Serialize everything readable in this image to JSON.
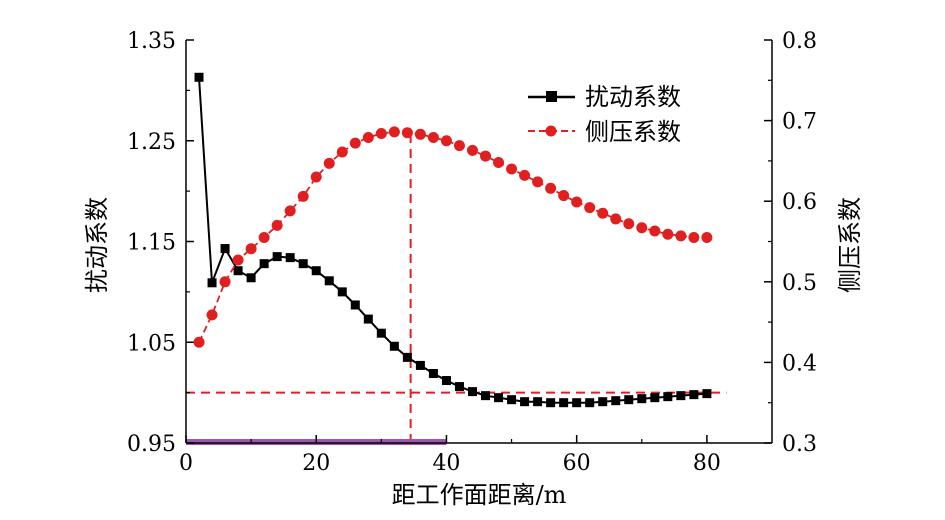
{
  "chart_data": {
    "type": "line",
    "xlabel": "距工作面距离/m",
    "ylabel": "扰动系数",
    "y2label": "侧压系数",
    "xlim": [
      0,
      90
    ],
    "ylim": [
      0.95,
      1.35
    ],
    "y2lim": [
      0.3,
      0.8
    ],
    "xticks": [
      0,
      20,
      40,
      60,
      80
    ],
    "yticks": [
      0.95,
      1.05,
      1.15,
      1.25,
      1.35
    ],
    "y2ticks": [
      0.3,
      0.4,
      0.5,
      0.6,
      0.7,
      0.8
    ],
    "xtick_labels": [
      "0",
      "20",
      "40",
      "60",
      "80"
    ],
    "ytick_labels": [
      "0.95",
      "1.05",
      "1.15",
      "1.25",
      "1.35"
    ],
    "y2tick_labels": [
      "0.3",
      "0.4",
      "0.5",
      "0.6",
      "0.7",
      "0.8"
    ],
    "legend_position": "top-right",
    "series": [
      {
        "name": "扰动系数",
        "axis": "left",
        "color": "#000000",
        "marker": "square",
        "x": [
          2,
          4,
          6,
          8,
          10,
          12,
          14,
          16,
          18,
          20,
          22,
          24,
          26,
          28,
          30,
          32,
          34,
          36,
          38,
          40,
          42,
          44,
          46,
          48,
          50,
          52,
          54,
          56,
          58,
          60,
          62,
          64,
          66,
          68,
          70,
          72,
          74,
          76,
          78,
          80
        ],
        "values": [
          1.313,
          1.109,
          1.143,
          1.121,
          1.114,
          1.128,
          1.135,
          1.134,
          1.128,
          1.121,
          1.111,
          1.1,
          1.087,
          1.073,
          1.059,
          1.046,
          1.035,
          1.027,
          1.019,
          1.012,
          1.006,
          1.001,
          0.997,
          0.995,
          0.993,
          0.991,
          0.991,
          0.99,
          0.99,
          0.99,
          0.99,
          0.991,
          0.992,
          0.993,
          0.994,
          0.995,
          0.996,
          0.997,
          0.998,
          0.999
        ]
      },
      {
        "name": "侧压系数",
        "axis": "right",
        "color": "#e02020",
        "marker": "circle",
        "x": [
          2,
          4,
          6,
          8,
          10,
          12,
          14,
          16,
          18,
          20,
          22,
          24,
          26,
          28,
          30,
          32,
          34,
          36,
          38,
          40,
          42,
          44,
          46,
          48,
          50,
          52,
          54,
          56,
          58,
          60,
          62,
          64,
          66,
          68,
          70,
          72,
          74,
          76,
          78,
          80
        ],
        "values": [
          0.425,
          0.459,
          0.5,
          0.527,
          0.541,
          0.555,
          0.57,
          0.588,
          0.606,
          0.63,
          0.647,
          0.661,
          0.672,
          0.679,
          0.684,
          0.686,
          0.685,
          0.683,
          0.679,
          0.675,
          0.669,
          0.663,
          0.656,
          0.648,
          0.64,
          0.632,
          0.624,
          0.616,
          0.607,
          0.599,
          0.592,
          0.585,
          0.578,
          0.572,
          0.567,
          0.563,
          0.559,
          0.557,
          0.555,
          0.555
        ]
      }
    ],
    "reference_lines": [
      {
        "orientation": "horizontal",
        "axis": "left",
        "value": 1.0,
        "x_range": [
          0,
          83
        ],
        "color": "#e02020",
        "dash": true
      },
      {
        "orientation": "vertical",
        "value": 34.5,
        "y2_range": [
          0.3,
          0.686
        ],
        "color": "#e02020",
        "dash": true
      }
    ],
    "highlight_band": {
      "axis": "x",
      "range": [
        0,
        40
      ],
      "color": "#a056b0"
    }
  }
}
